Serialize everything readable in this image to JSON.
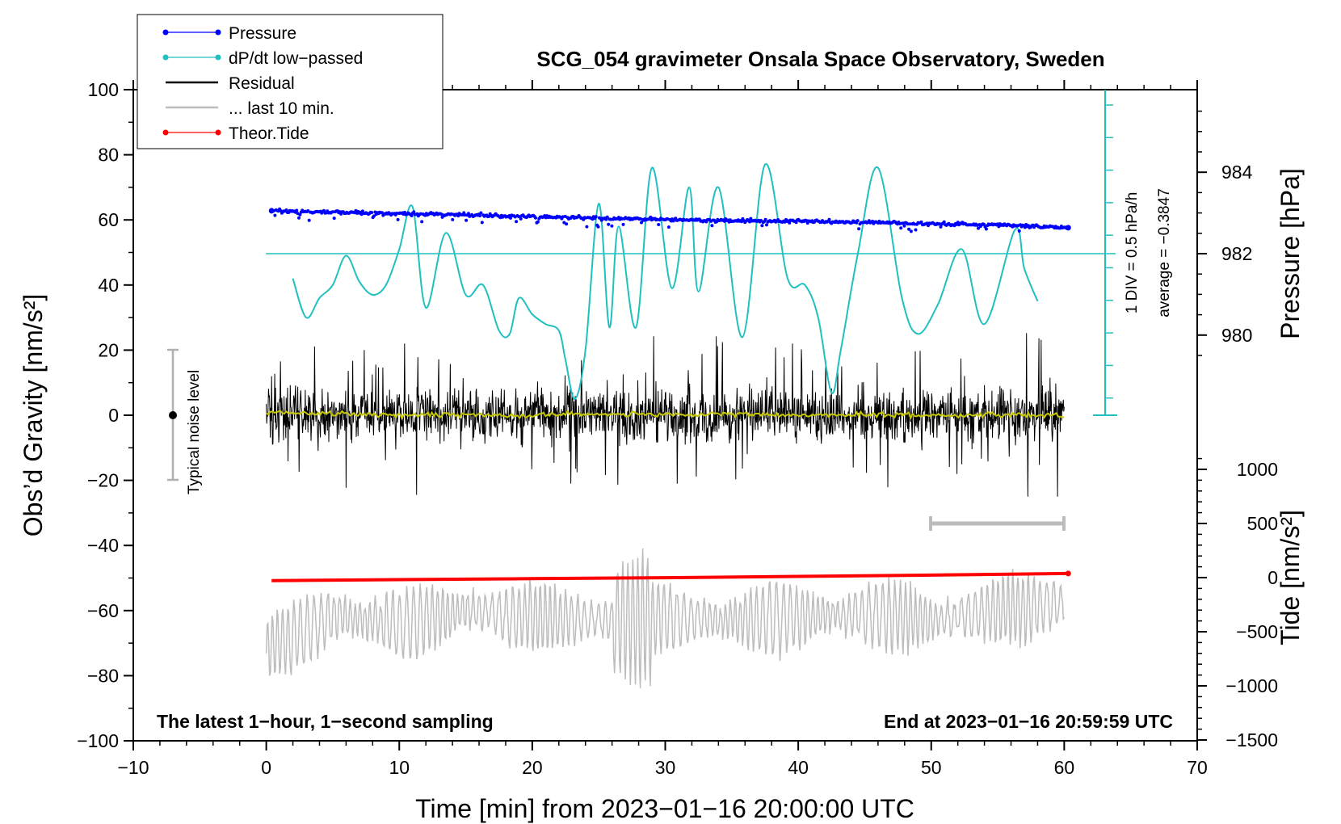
{
  "chart_data": {
    "type": "line",
    "title": "SCG_054 gravimeter Onsala Space Observatory, Sweden",
    "xlabel": "Time [min] from 2023−01−16 20:00:00 UTC",
    "ylabel_left": "Obs’d Gravity [nm/s²]",
    "ylabel_right_top": "Pressure [hPa]",
    "ylabel_right_bottom": "Tide [nm/s²]",
    "xlim": [
      -10,
      70
    ],
    "ylim": [
      -100,
      100
    ],
    "x_ticks": [
      "−10",
      "0",
      "10",
      "20",
      "30",
      "40",
      "50",
      "60",
      "70"
    ],
    "y_ticks": [
      "100",
      "80",
      "60",
      "40",
      "20",
      "0",
      "−20",
      "−40",
      "−60",
      "−80",
      "−100"
    ],
    "pressure_axis": {
      "ticks": [
        "984",
        "982",
        "980"
      ],
      "values": [
        984,
        982,
        980
      ]
    },
    "tide_axis": {
      "ticks": [
        "1000",
        "500",
        "0",
        "−500",
        "−1000",
        "−1500"
      ],
      "values": [
        1000,
        500,
        0,
        -500,
        -1000,
        -1500
      ]
    },
    "legend": [
      {
        "label": "Pressure",
        "color": "#0000ff",
        "marker": "dot"
      },
      {
        "label": "dP/dt low−passed",
        "color": "#20c0c0",
        "marker": "dot"
      },
      {
        "label": "Residual",
        "color": "#000000",
        "marker": "line"
      },
      {
        "label": "... last 10 min.",
        "color": "#c0c0c0",
        "marker": "line"
      },
      {
        "label": "Theor.Tide",
        "color": "#ff0000",
        "marker": "dot"
      }
    ],
    "annotations": {
      "noise_label": "Typical noise level",
      "noise_range": [
        -20,
        20
      ],
      "div_label": "1 DIV = 0.5 hPa/h",
      "average_label": "average = −0.3847",
      "left_note": "The latest 1−hour, 1−second sampling",
      "right_note": "End at 2023−01−16 20:59:59 UTC"
    },
    "series": [
      {
        "name": "Pressure",
        "color": "#0000ff",
        "x": [
          0.4,
          5,
          10,
          15,
          20,
          25,
          30,
          35,
          40,
          45,
          50,
          55,
          60.3
        ],
        "values": [
          62.8,
          62.4,
          61.9,
          61.6,
          61.0,
          60.5,
          60.1,
          59.8,
          59.6,
          59.3,
          58.8,
          58.5,
          57.6
        ]
      },
      {
        "name": "dP/dt low−passed",
        "color": "#20c0c0",
        "x": [
          2.0,
          3.0,
          4.0,
          5.0,
          6.0,
          7.0,
          8.0,
          9.0,
          10.0,
          11.0,
          12.0,
          13.5,
          15.0,
          16.3,
          17.5,
          18.3,
          19.0,
          20.0,
          21.0,
          22.0,
          22.5,
          23.2,
          24.0,
          25.0,
          25.8,
          26.5,
          27.8,
          29.0,
          30.5,
          31.8,
          32.5,
          34.0,
          35.8,
          37.5,
          39.2,
          40.5,
          41.5,
          42.5,
          43.2,
          44.5,
          46.0,
          47.8,
          49.0,
          50.5,
          52.3,
          54.0,
          56.3,
          57.0,
          58.0
        ],
        "values": [
          42,
          30,
          36,
          40,
          49,
          41,
          37,
          40,
          51,
          64,
          33,
          56,
          37,
          40,
          26,
          25,
          36,
          31,
          28,
          26,
          17,
          5,
          20,
          65,
          27,
          58,
          27,
          76,
          39,
          70,
          38,
          70,
          24,
          77,
          42,
          40,
          30,
          7,
          20,
          50,
          76,
          36,
          25,
          34,
          51,
          28,
          57,
          45,
          35
        ]
      },
      {
        "name": "Residual",
        "color": "#000000",
        "x": [
          0,
          5,
          10,
          15,
          20,
          25,
          30,
          35,
          40,
          45,
          50,
          55,
          60
        ],
        "values": [
          1,
          0.5,
          0,
          0.2,
          0,
          0.5,
          0,
          0.3,
          0,
          0.2,
          0,
          0.1,
          0
        ],
        "envelope": 25
      },
      {
        "name": "... last 10 min.",
        "color": "#c0c0c0",
        "x": [
          0,
          5,
          10,
          15,
          20,
          25,
          30,
          35,
          40,
          45,
          50,
          55,
          60
        ],
        "values": [
          -72,
          -62,
          -64,
          -60,
          -62,
          -63,
          -62,
          -63,
          -62,
          -61,
          -63,
          -60,
          -58
        ]
      },
      {
        "name": "Theor.Tide",
        "color": "#ff0000",
        "x": [
          0.4,
          10,
          20,
          30,
          40,
          50,
          60.3
        ],
        "values": [
          -50.8,
          -50.5,
          -50.2,
          -49.9,
          -49.5,
          -49.1,
          -48.6
        ]
      }
    ]
  }
}
